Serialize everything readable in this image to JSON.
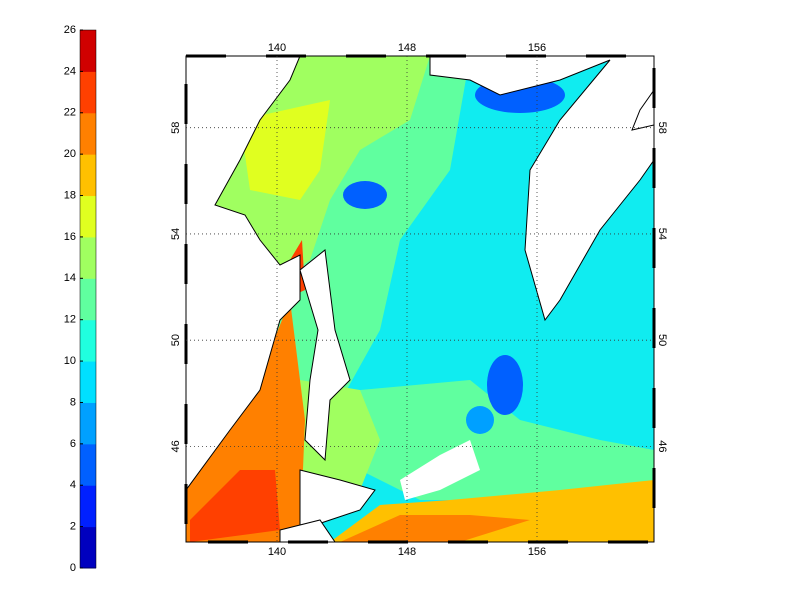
{
  "colorbar": {
    "lim": [
      0,
      26
    ],
    "ticks": [
      0,
      2,
      4,
      6,
      8,
      10,
      12,
      14,
      16,
      18,
      20,
      22,
      24,
      26
    ],
    "colors": [
      "#0000bf",
      "#0020ff",
      "#0060ff",
      "#00a0ff",
      "#00e0ff",
      "#20ffdf",
      "#60ff9f",
      "#a0ff60",
      "#e0ff20",
      "#ffc000",
      "#ff8000",
      "#ff4000",
      "#d00000"
    ]
  },
  "map": {
    "xlim": [
      134.4,
      163.2
    ],
    "ylim": [
      42.4,
      60.7
    ],
    "xticks": [
      140,
      148,
      156
    ],
    "yticks": [
      46,
      50,
      54,
      58
    ],
    "grid": true
  }
}
